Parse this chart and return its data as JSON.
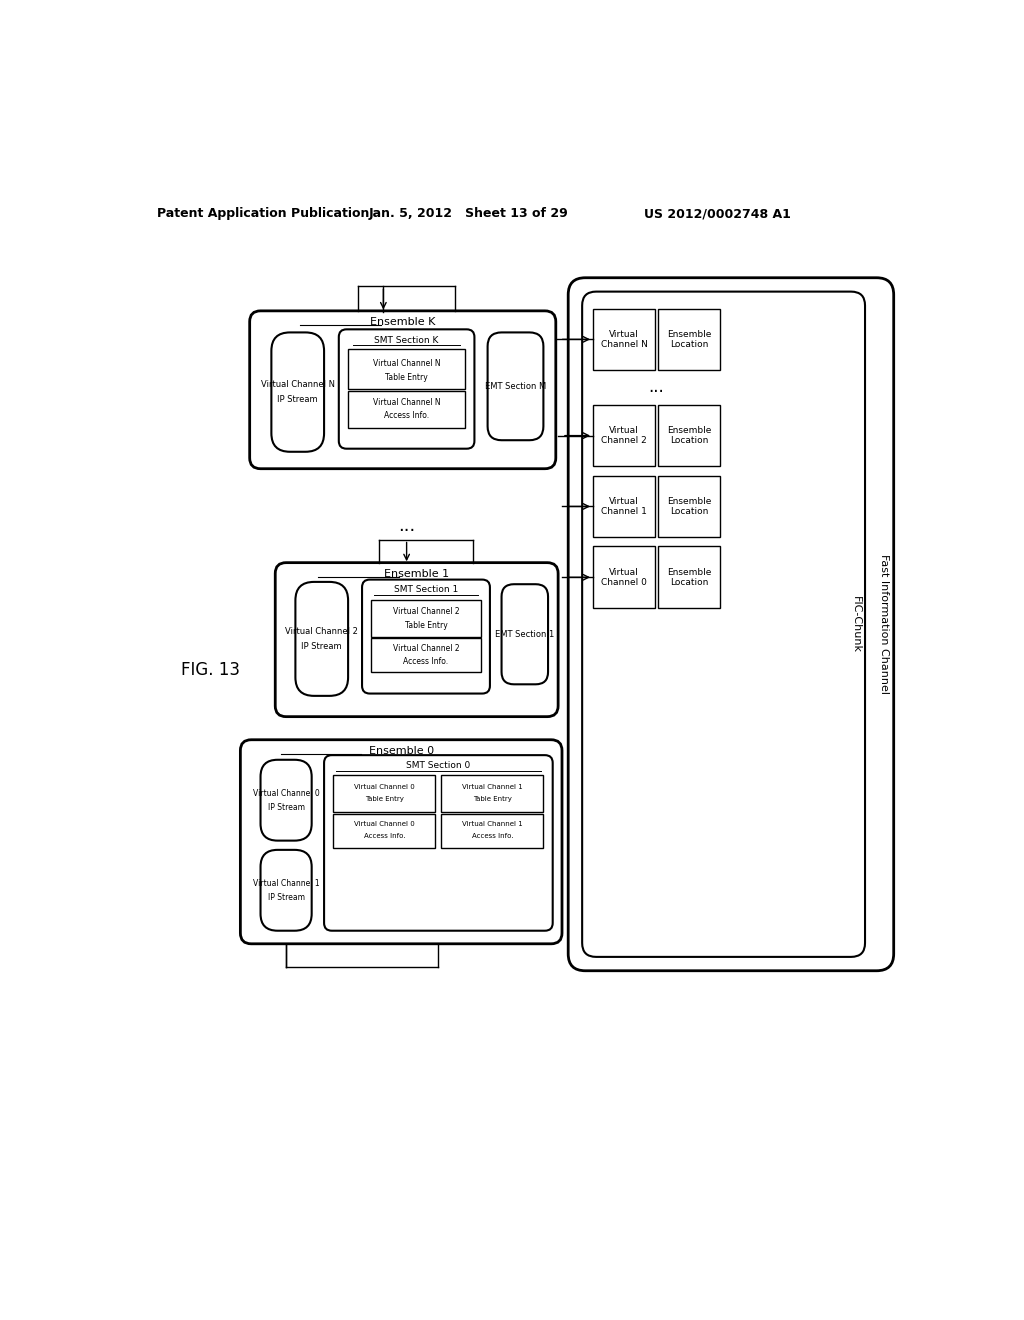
{
  "title_left": "Patent Application Publication",
  "title_mid": "Jan. 5, 2012   Sheet 13 of 29",
  "title_right": "US 2012/0002748 A1",
  "fig_label": "FIG. 13",
  "bg_color": "#ffffff"
}
